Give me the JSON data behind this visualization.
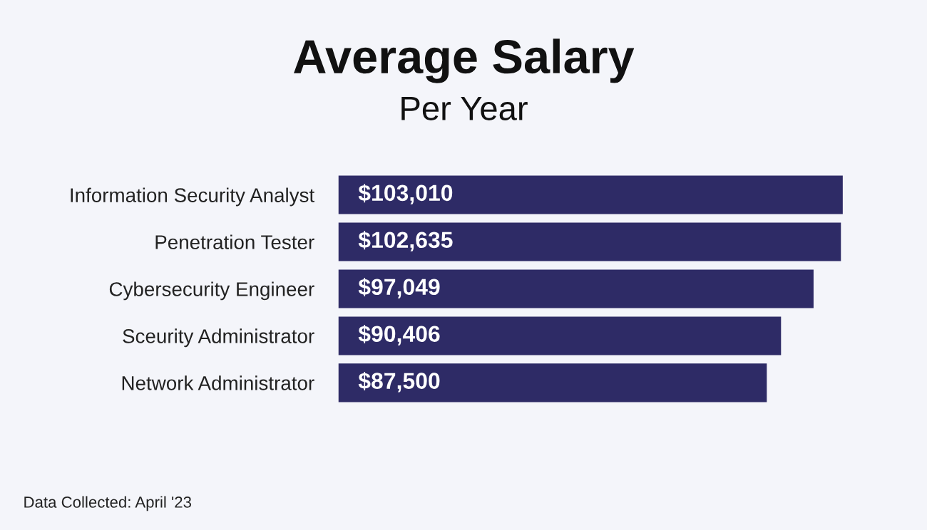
{
  "chart_data": {
    "type": "bar",
    "orientation": "horizontal",
    "title": "Average Salary",
    "subtitle": "Per Year",
    "categories": [
      "Information Security Analyst",
      "Penetration Tester",
      "Cybersecurity Engineer",
      "Sceurity Administrator",
      "Network Administrator"
    ],
    "values": [
      103010,
      102635,
      97049,
      90406,
      87500
    ],
    "value_labels": [
      "$103,010",
      "$102,635",
      "$97,049",
      "$90,406",
      "$87,500"
    ],
    "color": "#2e2b66",
    "annotations": [
      "Data Collected: April '23"
    ],
    "grid": false,
    "legend": false
  }
}
